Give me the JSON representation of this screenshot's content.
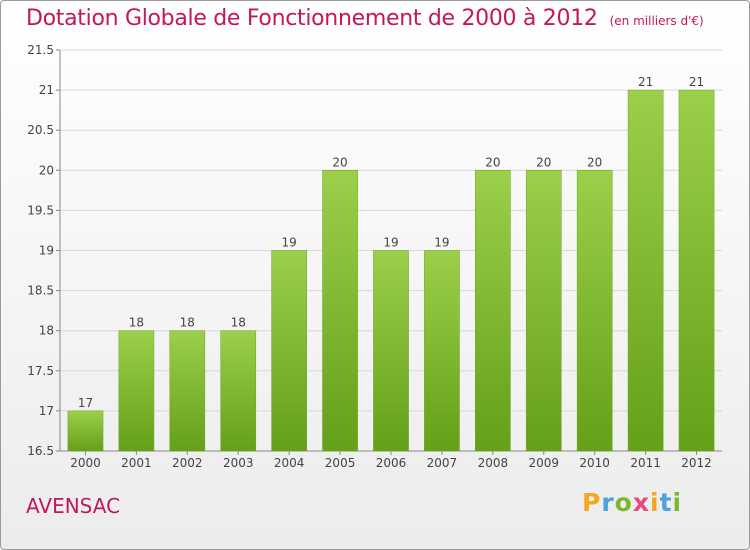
{
  "title": "Dotation Globale de Fonctionnement de 2000 à 2012",
  "unit_note": "(en milliers d'€)",
  "place": "AVENSAC",
  "brand": {
    "letters": [
      "P",
      "r",
      "o",
      "x",
      "i",
      "t",
      "i"
    ],
    "colors": [
      "#f5a623",
      "#4aa3df",
      "#7cb82f",
      "#e64980",
      "#f5a623",
      "#4aa3df",
      "#7cb82f"
    ]
  },
  "chart_data": {
    "type": "bar",
    "categories": [
      "2000",
      "2001",
      "2002",
      "2003",
      "2004",
      "2005",
      "2006",
      "2007",
      "2008",
      "2009",
      "2010",
      "2011",
      "2012"
    ],
    "values": [
      17,
      18,
      18,
      18,
      19,
      20,
      19,
      19,
      20,
      20,
      20,
      21,
      21
    ],
    "value_labels": [
      "17",
      "18",
      "18",
      "18",
      "19",
      "20",
      "19",
      "19",
      "20",
      "20",
      "20",
      "21",
      "21"
    ],
    "ylim": [
      16.5,
      21.5
    ],
    "yticks": [
      16.5,
      17,
      17.5,
      18,
      18.5,
      19,
      19.5,
      20,
      20.5,
      21,
      21.5
    ],
    "ytick_labels": [
      "16.5",
      "17",
      "17.5",
      "18",
      "18.5",
      "19",
      "19.5",
      "20",
      "20.5",
      "21",
      "21.5"
    ],
    "grid": "horizontal",
    "bar_color": "#7cb82f"
  }
}
